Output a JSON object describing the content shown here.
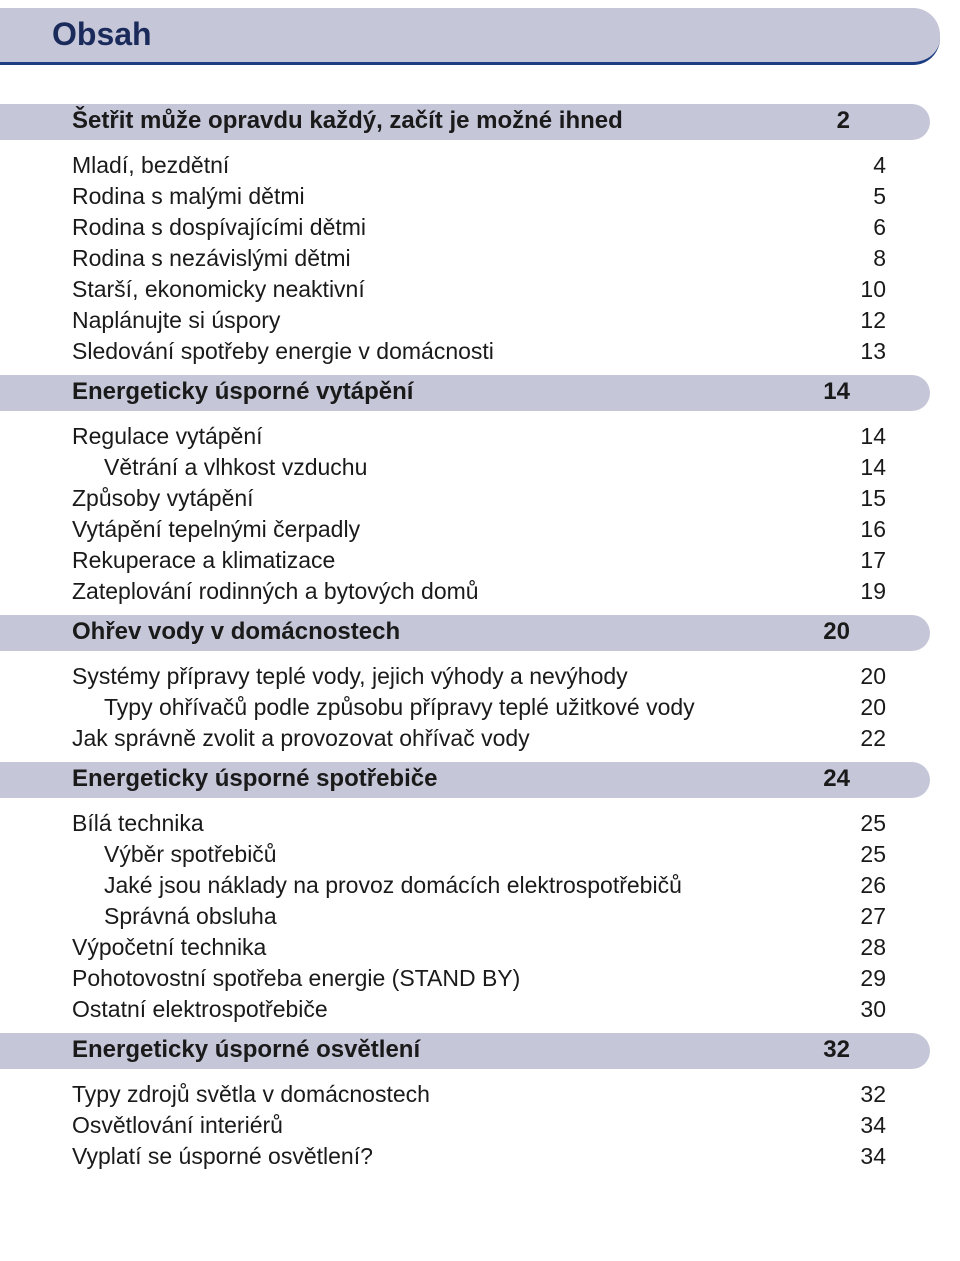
{
  "colors": {
    "section_bg": "#c5c6d8",
    "header_underline": "#1d3d82",
    "text": "#1a1a1a",
    "page_bg": "#ffffff"
  },
  "header": {
    "title": "Obsah"
  },
  "sections": [
    {
      "title": "Šetřit může opravdu každý, začít je možné ihned",
      "page": "2",
      "items": [
        {
          "label": "Mladí, bezdětní",
          "page": "4",
          "indent": 0
        },
        {
          "label": "Rodina s malými dětmi",
          "page": "5",
          "indent": 0
        },
        {
          "label": "Rodina s dospívajícími dětmi",
          "page": "6",
          "indent": 0
        },
        {
          "label": "Rodina s nezávislými dětmi",
          "page": "8",
          "indent": 0
        },
        {
          "label": "Starší, ekonomicky neaktivní",
          "page": "10",
          "indent": 0
        },
        {
          "label": "Naplánujte si úspory",
          "page": "12",
          "indent": 0
        },
        {
          "label": "Sledování spotřeby energie v domácnosti",
          "page": "13",
          "indent": 0
        }
      ]
    },
    {
      "title": "Energeticky úsporné vytápění",
      "page": "14",
      "items": [
        {
          "label": "Regulace vytápění",
          "page": "14",
          "indent": 0
        },
        {
          "label": "Větrání a vlhkost vzduchu",
          "page": "14",
          "indent": 1
        },
        {
          "label": "Způsoby vytápění",
          "page": "15",
          "indent": 0
        },
        {
          "label": "Vytápění tepelnými čerpadly",
          "page": "16",
          "indent": 0
        },
        {
          "label": "Rekuperace a klimatizace",
          "page": "17",
          "indent": 0
        },
        {
          "label": "Zateplování rodinných a bytových domů",
          "page": "19",
          "indent": 0
        }
      ]
    },
    {
      "title": "Ohřev vody v domácnostech",
      "page": "20",
      "items": [
        {
          "label": "Systémy přípravy teplé vody, jejich výhody a nevýhody",
          "page": "20",
          "indent": 0
        },
        {
          "label": "Typy ohřívačů podle způsobu přípravy teplé užitkové vody",
          "page": "20",
          "indent": 1
        },
        {
          "label": "Jak správně zvolit a provozovat ohřívač vody",
          "page": "22",
          "indent": 0
        }
      ]
    },
    {
      "title": "Energeticky úsporné spotřebiče",
      "page": "24",
      "items": [
        {
          "label": "Bílá technika",
          "page": "25",
          "indent": 0
        },
        {
          "label": "Výběr spotřebičů",
          "page": "25",
          "indent": 1
        },
        {
          "label": "Jaké jsou náklady na provoz domácích elektrospotřebičů",
          "page": "26",
          "indent": 1
        },
        {
          "label": "Správná obsluha",
          "page": "27",
          "indent": 1
        },
        {
          "label": "Výpočetní technika",
          "page": "28",
          "indent": 0
        },
        {
          "label": "Pohotovostní spotřeba energie (STAND BY)",
          "page": "29",
          "indent": 0
        },
        {
          "label": "Ostatní elektrospotřebiče",
          "page": "30",
          "indent": 0
        }
      ]
    },
    {
      "title": "Energeticky úsporné osvětlení",
      "page": "32",
      "items": [
        {
          "label": "Typy zdrojů světla v domácnostech",
          "page": "32",
          "indent": 0
        },
        {
          "label": "Osvětlování interiérů",
          "page": "34",
          "indent": 0
        },
        {
          "label": "Vyplatí se úsporné osvětlení?",
          "page": "34",
          "indent": 0
        }
      ]
    }
  ]
}
